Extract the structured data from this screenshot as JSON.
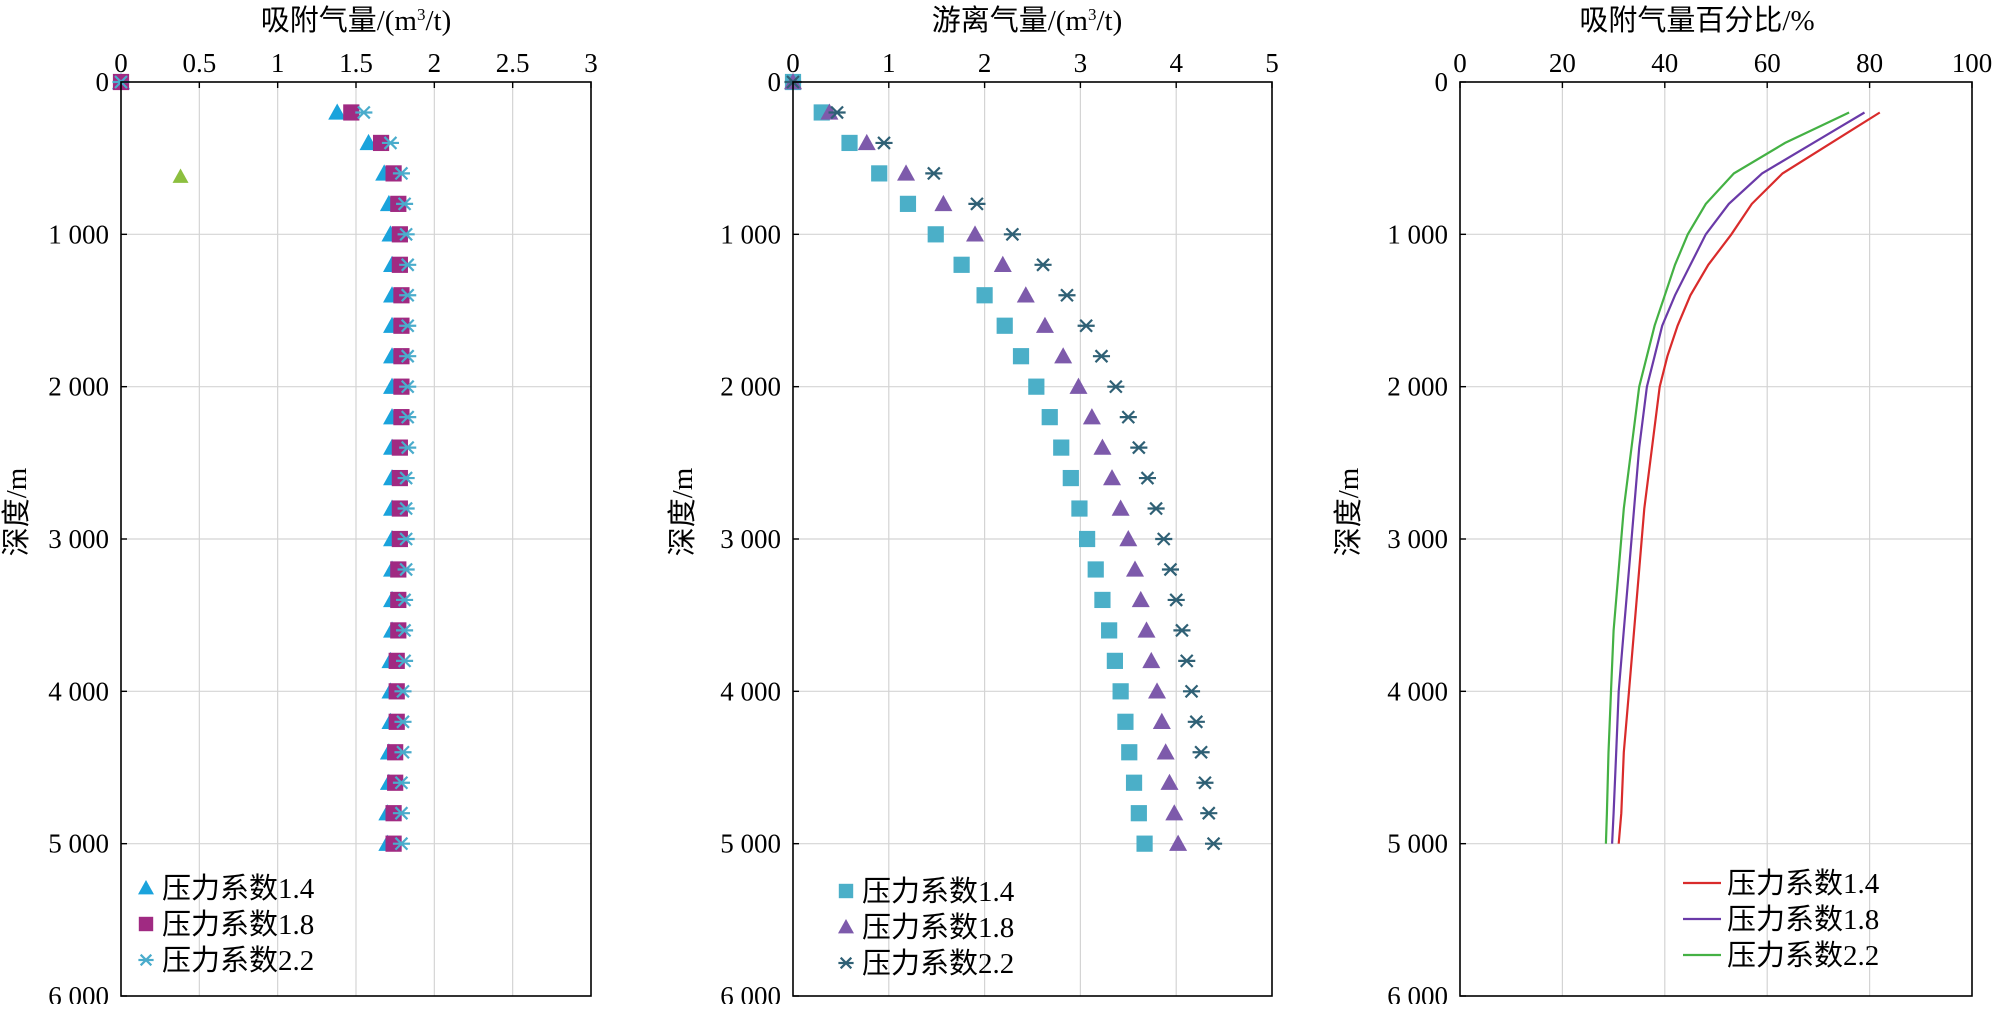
{
  "figure": {
    "panels_label": "three depth-profile panels"
  },
  "chart_data": [
    {
      "type": "scatter",
      "title": "吸附气量/(m³/t)",
      "title_parts": [
        "吸附气量/(m",
        "3",
        "/t)"
      ],
      "xlabel": "吸附气量/(m³/t)",
      "ylabel": "深度/m",
      "x_ticks": [
        "0",
        "0.5",
        "1",
        "1.5",
        "2",
        "2.5",
        "3"
      ],
      "y_ticks": [
        "0",
        "1 000",
        "2 000",
        "3 000",
        "4 000",
        "5 000",
        "6 000"
      ],
      "xlim": [
        0,
        3
      ],
      "ylim": [
        0,
        6000
      ],
      "y_inverted": true,
      "grid": "vertical and horizontal",
      "legend_position": "bottom-left",
      "series": [
        {
          "name": "压力系数1.4",
          "marker": "triangle",
          "color": "#1aa3dc",
          "x": [
            0,
            1.38,
            1.58,
            1.68,
            1.71,
            1.72,
            1.73,
            1.73,
            1.73,
            1.73,
            1.73,
            1.73,
            1.73,
            1.73,
            1.73,
            1.73,
            1.73,
            1.73,
            1.73,
            1.72,
            1.72,
            1.72,
            1.71,
            1.71,
            1.7,
            1.7
          ],
          "y": [
            0,
            200,
            400,
            600,
            800,
            1000,
            1200,
            1400,
            1600,
            1800,
            2000,
            2200,
            2400,
            2600,
            2800,
            3000,
            3200,
            3400,
            3600,
            3800,
            4000,
            4200,
            4400,
            4600,
            4800,
            5000
          ]
        },
        {
          "name": "压力系数1.8",
          "marker": "square",
          "color": "#a02a82",
          "x": [
            0,
            1.47,
            1.66,
            1.74,
            1.77,
            1.78,
            1.78,
            1.79,
            1.79,
            1.79,
            1.79,
            1.79,
            1.78,
            1.78,
            1.78,
            1.78,
            1.77,
            1.77,
            1.77,
            1.76,
            1.76,
            1.76,
            1.75,
            1.75,
            1.74,
            1.74
          ],
          "y": [
            0,
            200,
            400,
            600,
            800,
            1000,
            1200,
            1400,
            1600,
            1800,
            2000,
            2200,
            2400,
            2600,
            2800,
            3000,
            3200,
            3400,
            3600,
            3800,
            4000,
            4200,
            4400,
            4600,
            4800,
            5000
          ]
        },
        {
          "name": "压力系数2.2",
          "marker": "asterisk",
          "color": "#4aaccc",
          "x": [
            0,
            1.55,
            1.72,
            1.79,
            1.81,
            1.82,
            1.83,
            1.83,
            1.83,
            1.83,
            1.83,
            1.83,
            1.83,
            1.82,
            1.82,
            1.82,
            1.82,
            1.81,
            1.81,
            1.81,
            1.8,
            1.8,
            1.8,
            1.79,
            1.79,
            1.79
          ],
          "y": [
            0,
            200,
            400,
            600,
            800,
            1000,
            1200,
            1400,
            1600,
            1800,
            2000,
            2200,
            2400,
            2600,
            2800,
            3000,
            3200,
            3400,
            3600,
            3800,
            4000,
            4200,
            4400,
            4600,
            4800,
            5000
          ]
        }
      ],
      "outliers": [
        {
          "marker": "triangle",
          "color": "#8cbf3f",
          "x": 0.38,
          "y": 620
        }
      ]
    },
    {
      "type": "scatter",
      "title": "游离气量/(m³/t)",
      "title_parts": [
        "游离气量/(m",
        "3",
        "/t)"
      ],
      "xlabel": "游离气量/(m³/t)",
      "ylabel": "深度/m",
      "x_ticks": [
        "0",
        "1",
        "2",
        "3",
        "4",
        "5"
      ],
      "y_ticks": [
        "0",
        "1 000",
        "2 000",
        "3 000",
        "4 000",
        "5 000",
        "6 000"
      ],
      "xlim": [
        0,
        5
      ],
      "ylim": [
        0,
        6000
      ],
      "y_inverted": true,
      "grid": "vertical and horizontal",
      "legend_position": "bottom-left",
      "series": [
        {
          "name": "压力系数1.4",
          "marker": "square",
          "color": "#4bafc8",
          "x": [
            0,
            0.3,
            0.59,
            0.9,
            1.2,
            1.49,
            1.76,
            2.0,
            2.21,
            2.38,
            2.54,
            2.68,
            2.8,
            2.9,
            2.99,
            3.07,
            3.16,
            3.23,
            3.3,
            3.36,
            3.42,
            3.47,
            3.51,
            3.56,
            3.61,
            3.67
          ],
          "y": [
            0,
            200,
            400,
            600,
            800,
            1000,
            1200,
            1400,
            1600,
            1800,
            2000,
            2200,
            2400,
            2600,
            2800,
            3000,
            3200,
            3400,
            3600,
            3800,
            4000,
            4200,
            4400,
            4600,
            4800,
            5000
          ]
        },
        {
          "name": "压力系数1.8",
          "marker": "triangle",
          "color": "#7d5aab",
          "x": [
            0,
            0.38,
            0.77,
            1.18,
            1.57,
            1.9,
            2.19,
            2.43,
            2.63,
            2.82,
            2.98,
            3.12,
            3.23,
            3.33,
            3.42,
            3.5,
            3.57,
            3.63,
            3.69,
            3.74,
            3.8,
            3.85,
            3.89,
            3.93,
            3.98,
            4.02
          ],
          "y": [
            0,
            200,
            400,
            600,
            800,
            1000,
            1200,
            1400,
            1600,
            1800,
            2000,
            2200,
            2400,
            2600,
            2800,
            3000,
            3200,
            3400,
            3600,
            3800,
            4000,
            4200,
            4400,
            4600,
            4800,
            5000
          ]
        },
        {
          "name": "压力系数2.2",
          "marker": "asterisk",
          "color": "#2f6075",
          "x": [
            0,
            0.46,
            0.95,
            1.47,
            1.92,
            2.29,
            2.61,
            2.86,
            3.06,
            3.22,
            3.37,
            3.5,
            3.61,
            3.7,
            3.79,
            3.87,
            3.94,
            4.0,
            4.06,
            4.11,
            4.16,
            4.21,
            4.26,
            4.3,
            4.34,
            4.39
          ],
          "y": [
            0,
            200,
            400,
            600,
            800,
            1000,
            1200,
            1400,
            1600,
            1800,
            2000,
            2200,
            2400,
            2600,
            2800,
            3000,
            3200,
            3400,
            3600,
            3800,
            4000,
            4200,
            4400,
            4600,
            4800,
            5000
          ]
        }
      ]
    },
    {
      "type": "line",
      "title": "吸附气量百分比/%",
      "xlabel": "吸附气量百分比/%",
      "ylabel": "深度/m",
      "x_ticks": [
        "0",
        "20",
        "40",
        "60",
        "80",
        "100"
      ],
      "y_ticks": [
        "0",
        "1 000",
        "2 000",
        "3 000",
        "4 000",
        "5 000",
        "6 000"
      ],
      "xlim": [
        0,
        100
      ],
      "ylim": [
        0,
        6000
      ],
      "y_inverted": true,
      "grid": "vertical and horizontal",
      "legend_position": "bottom-right",
      "series": [
        {
          "name": "压力系数1.4",
          "color": "#d92b2b",
          "x": [
            82.0,
            72.5,
            63.0,
            57.0,
            53.0,
            48.5,
            45.0,
            42.5,
            40.5,
            39.0,
            37.5,
            36.0,
            35.0,
            34.0,
            33.0,
            32.0,
            31.5,
            31.0
          ],
          "y": [
            200,
            400,
            600,
            800,
            1000,
            1200,
            1400,
            1600,
            1800,
            2000,
            2400,
            2800,
            3200,
            3600,
            4000,
            4400,
            4800,
            5000
          ]
        },
        {
          "name": "压力系数1.8",
          "color": "#6a3aa8",
          "x": [
            79.0,
            69.0,
            59.0,
            52.5,
            48.0,
            45.0,
            42.0,
            39.5,
            38.0,
            36.5,
            35.0,
            34.0,
            33.0,
            32.0,
            31.0,
            30.5,
            30.0,
            29.7
          ],
          "y": [
            200,
            400,
            600,
            800,
            1000,
            1200,
            1400,
            1600,
            1800,
            2000,
            2400,
            2800,
            3200,
            3600,
            4000,
            4400,
            4800,
            5000
          ]
        },
        {
          "name": "压力系数2.2",
          "color": "#44b144",
          "x": [
            76.0,
            63.5,
            53.5,
            48.0,
            44.5,
            42.0,
            40.0,
            38.0,
            36.5,
            35.0,
            33.5,
            32.0,
            31.0,
            30.0,
            29.5,
            29.0,
            28.7,
            28.5
          ],
          "y": [
            200,
            400,
            600,
            800,
            1000,
            1200,
            1400,
            1600,
            1800,
            2000,
            2400,
            2800,
            3200,
            3600,
            4000,
            4400,
            4800,
            5000
          ]
        }
      ]
    }
  ]
}
